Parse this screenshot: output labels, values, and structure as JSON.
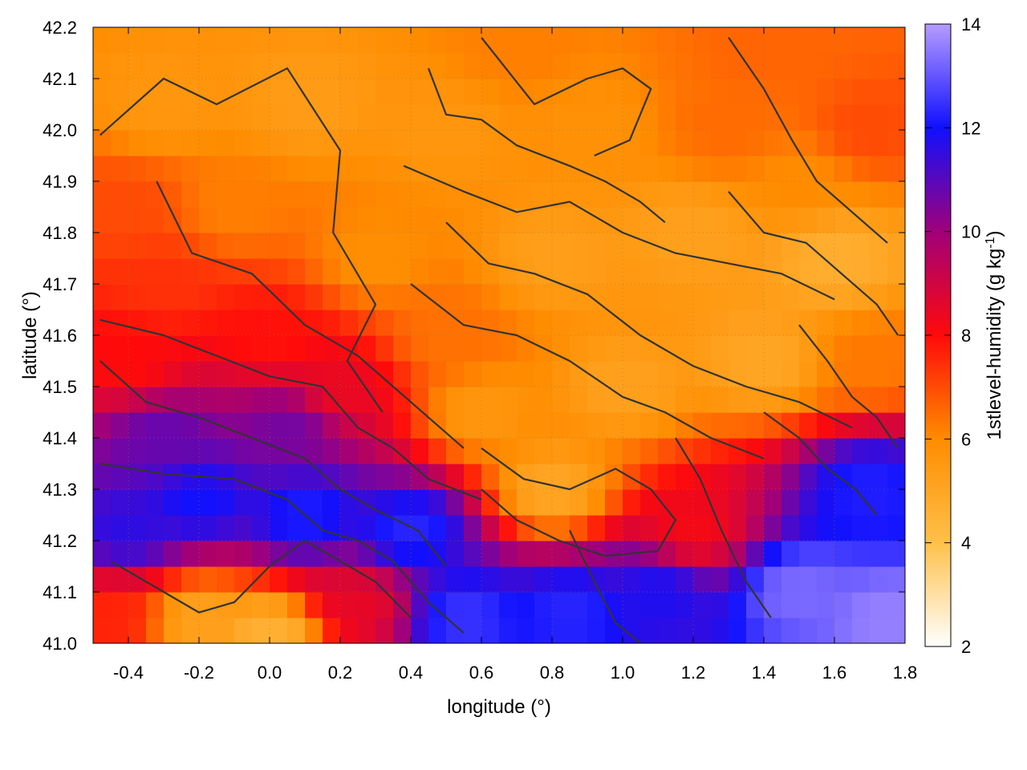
{
  "chart_data": {
    "type": "heatmap",
    "xlabel": "longitude (°)",
    "ylabel": "latitude (°)",
    "colorbar_label": "1stlevel-humidity (g kg",
    "colorbar_label_sup": "-1",
    "colorbar_label_close": ")",
    "xlim": [
      -0.5,
      1.8
    ],
    "ylim": [
      41.0,
      42.2
    ],
    "clim": [
      2,
      14
    ],
    "x_ticks": [
      -0.4,
      -0.2,
      0.0,
      0.2,
      0.4,
      0.6,
      0.8,
      1.0,
      1.2,
      1.4,
      1.6,
      1.8
    ],
    "x_tick_labels": [
      "-0.4",
      "-0.2",
      "0.0",
      "0.2",
      "0.4",
      "0.6",
      "0.8",
      "1.0",
      "1.2",
      "1.4",
      "1.6",
      "1.8"
    ],
    "y_ticks": [
      41.0,
      41.1,
      41.2,
      41.3,
      41.4,
      41.5,
      41.6,
      41.7,
      41.8,
      41.9,
      42.0,
      42.1,
      42.2
    ],
    "y_tick_labels": [
      "41.0",
      "41.1",
      "41.2",
      "41.3",
      "41.4",
      "41.5",
      "41.6",
      "41.7",
      "41.8",
      "41.9",
      "42.0",
      "42.1",
      "42.2"
    ],
    "colorbar_ticks": [
      2,
      4,
      6,
      8,
      10,
      12,
      14
    ],
    "colorbar_tick_labels": [
      "2",
      "4",
      "6",
      "8",
      "10",
      "12",
      "14"
    ],
    "colormap": [
      {
        "value": 2,
        "color": "#ffffff"
      },
      {
        "value": 4,
        "color": "#ffc04a"
      },
      {
        "value": 6,
        "color": "#ff8c00"
      },
      {
        "value": 8,
        "color": "#ff0a0a"
      },
      {
        "value": 10,
        "color": "#a0007a"
      },
      {
        "value": 12,
        "color": "#1010ff"
      },
      {
        "value": 14,
        "color": "#b69cff"
      }
    ],
    "grid": true,
    "contour_color": "#333333",
    "field_anchors": [
      {
        "lon": -0.45,
        "lat": 41.05,
        "value": 7.6
      },
      {
        "lon": -0.2,
        "lat": 41.05,
        "value": 5.2
      },
      {
        "lon": 0.0,
        "lat": 41.02,
        "value": 4.6
      },
      {
        "lon": 0.25,
        "lat": 41.08,
        "value": 8.5
      },
      {
        "lon": -0.4,
        "lat": 41.22,
        "value": 11.6
      },
      {
        "lon": -0.2,
        "lat": 41.28,
        "value": 12.0
      },
      {
        "lon": 0.1,
        "lat": 41.25,
        "value": 12.2
      },
      {
        "lon": 0.4,
        "lat": 41.22,
        "value": 12.3
      },
      {
        "lon": 0.55,
        "lat": 41.05,
        "value": 12.5
      },
      {
        "lon": 0.85,
        "lat": 41.06,
        "value": 12.3
      },
      {
        "lon": 1.1,
        "lat": 41.1,
        "value": 11.8
      },
      {
        "lon": 1.5,
        "lat": 41.1,
        "value": 13.3
      },
      {
        "lon": 1.75,
        "lat": 41.05,
        "value": 13.6
      },
      {
        "lon": 1.7,
        "lat": 41.3,
        "value": 12.2
      },
      {
        "lon": 1.2,
        "lat": 41.22,
        "value": 8.2
      },
      {
        "lon": -0.3,
        "lat": 41.4,
        "value": 10.8
      },
      {
        "lon": 0.05,
        "lat": 41.42,
        "value": 10.6
      },
      {
        "lon": 0.2,
        "lat": 41.5,
        "value": 8.4
      },
      {
        "lon": -0.4,
        "lat": 41.55,
        "value": 8.0
      },
      {
        "lon": -0.3,
        "lat": 41.7,
        "value": 7.4
      },
      {
        "lon": 0.0,
        "lat": 41.6,
        "value": 7.9
      },
      {
        "lon": 0.8,
        "lat": 41.3,
        "value": 5.0
      },
      {
        "lon": 0.6,
        "lat": 41.45,
        "value": 5.6
      },
      {
        "lon": 0.5,
        "lat": 41.6,
        "value": 6.4
      },
      {
        "lon": 1.0,
        "lat": 41.5,
        "value": 5.2
      },
      {
        "lon": 1.4,
        "lat": 41.55,
        "value": 5.0
      },
      {
        "lon": 1.7,
        "lat": 41.55,
        "value": 6.3
      },
      {
        "lon": 1.6,
        "lat": 41.75,
        "value": 4.7
      },
      {
        "lon": 1.2,
        "lat": 41.8,
        "value": 5.2
      },
      {
        "lon": 0.8,
        "lat": 41.75,
        "value": 5.3
      },
      {
        "lon": 0.3,
        "lat": 41.75,
        "value": 5.9
      },
      {
        "lon": -0.1,
        "lat": 41.85,
        "value": 6.2
      },
      {
        "lon": -0.4,
        "lat": 41.85,
        "value": 7.0
      },
      {
        "lon": -0.3,
        "lat": 42.05,
        "value": 5.6
      },
      {
        "lon": 0.1,
        "lat": 42.05,
        "value": 5.4
      },
      {
        "lon": 0.5,
        "lat": 42.0,
        "value": 5.6
      },
      {
        "lon": 0.9,
        "lat": 42.0,
        "value": 5.8
      },
      {
        "lon": 1.3,
        "lat": 42.0,
        "value": 6.5
      },
      {
        "lon": 1.7,
        "lat": 42.0,
        "value": 7.0
      },
      {
        "lon": 1.5,
        "lat": 41.9,
        "value": 6.0
      },
      {
        "lon": 0.7,
        "lat": 42.15,
        "value": 6.2
      },
      {
        "lon": 1.4,
        "lat": 42.15,
        "value": 6.6
      }
    ],
    "contours": [
      [
        [
          -0.48,
          41.99
        ],
        [
          -0.3,
          42.1
        ],
        [
          -0.15,
          42.05
        ],
        [
          0.05,
          42.12
        ],
        [
          0.2,
          41.96
        ],
        [
          0.18,
          41.8
        ],
        [
          0.3,
          41.66
        ],
        [
          0.22,
          41.55
        ],
        [
          0.32,
          41.45
        ]
      ],
      [
        [
          -0.32,
          41.9
        ],
        [
          -0.22,
          41.76
        ],
        [
          -0.05,
          41.72
        ],
        [
          0.1,
          41.62
        ],
        [
          0.25,
          41.56
        ],
        [
          0.35,
          41.5
        ],
        [
          0.45,
          41.44
        ],
        [
          0.55,
          41.38
        ]
      ],
      [
        [
          -0.48,
          41.63
        ],
        [
          -0.3,
          41.6
        ],
        [
          -0.15,
          41.56
        ],
        [
          0.0,
          41.52
        ],
        [
          0.15,
          41.5
        ],
        [
          0.25,
          41.42
        ],
        [
          0.35,
          41.38
        ],
        [
          0.45,
          41.32
        ],
        [
          0.6,
          41.28
        ]
      ],
      [
        [
          -0.48,
          41.55
        ],
        [
          -0.35,
          41.47
        ],
        [
          -0.2,
          41.44
        ],
        [
          -0.05,
          41.4
        ],
        [
          0.1,
          41.36
        ],
        [
          0.2,
          41.3
        ],
        [
          0.3,
          41.26
        ],
        [
          0.42,
          41.22
        ],
        [
          0.5,
          41.15
        ]
      ],
      [
        [
          -0.48,
          41.35
        ],
        [
          -0.3,
          41.33
        ],
        [
          -0.1,
          41.32
        ],
        [
          0.05,
          41.28
        ],
        [
          0.15,
          41.22
        ],
        [
          0.25,
          41.2
        ],
        [
          0.35,
          41.16
        ],
        [
          0.45,
          41.08
        ],
        [
          0.55,
          41.02
        ]
      ],
      [
        [
          -0.45,
          41.16
        ],
        [
          -0.3,
          41.1
        ],
        [
          -0.2,
          41.06
        ],
        [
          -0.1,
          41.08
        ],
        [
          0.0,
          41.15
        ],
        [
          0.1,
          41.2
        ],
        [
          0.2,
          41.16
        ],
        [
          0.3,
          41.12
        ],
        [
          0.4,
          41.05
        ]
      ],
      [
        [
          0.45,
          42.12
        ],
        [
          0.5,
          42.03
        ],
        [
          0.6,
          42.02
        ],
        [
          0.7,
          41.97
        ],
        [
          0.85,
          41.93
        ],
        [
          0.95,
          41.9
        ],
        [
          1.05,
          41.86
        ],
        [
          1.12,
          41.82
        ]
      ],
      [
        [
          0.6,
          42.18
        ],
        [
          0.75,
          42.05
        ],
        [
          0.9,
          42.1
        ],
        [
          1.0,
          42.12
        ],
        [
          1.08,
          42.08
        ],
        [
          1.02,
          41.98
        ],
        [
          0.92,
          41.95
        ]
      ],
      [
        [
          0.38,
          41.93
        ],
        [
          0.55,
          41.88
        ],
        [
          0.7,
          41.84
        ],
        [
          0.85,
          41.86
        ],
        [
          1.0,
          41.8
        ],
        [
          1.15,
          41.76
        ],
        [
          1.3,
          41.74
        ],
        [
          1.45,
          41.72
        ],
        [
          1.6,
          41.67
        ]
      ],
      [
        [
          0.5,
          41.82
        ],
        [
          0.62,
          41.74
        ],
        [
          0.75,
          41.72
        ],
        [
          0.9,
          41.68
        ],
        [
          1.05,
          41.6
        ],
        [
          1.2,
          41.54
        ],
        [
          1.35,
          41.5
        ],
        [
          1.5,
          41.47
        ],
        [
          1.65,
          41.42
        ]
      ],
      [
        [
          0.4,
          41.7
        ],
        [
          0.55,
          41.62
        ],
        [
          0.7,
          41.6
        ],
        [
          0.85,
          41.55
        ],
        [
          1.0,
          41.48
        ],
        [
          1.12,
          41.45
        ],
        [
          1.25,
          41.4
        ],
        [
          1.4,
          41.36
        ]
      ],
      [
        [
          0.6,
          41.38
        ],
        [
          0.72,
          41.32
        ],
        [
          0.85,
          41.3
        ],
        [
          0.98,
          41.34
        ],
        [
          1.08,
          41.3
        ],
        [
          1.15,
          41.24
        ],
        [
          1.1,
          41.18
        ],
        [
          0.95,
          41.17
        ],
        [
          0.82,
          41.2
        ],
        [
          0.7,
          41.24
        ],
        [
          0.6,
          41.3
        ]
      ],
      [
        [
          1.15,
          41.4
        ],
        [
          1.22,
          41.32
        ],
        [
          1.28,
          41.22
        ],
        [
          1.35,
          41.12
        ],
        [
          1.42,
          41.05
        ]
      ],
      [
        [
          0.85,
          41.22
        ],
        [
          0.92,
          41.12
        ],
        [
          0.98,
          41.04
        ],
        [
          1.05,
          41.0
        ]
      ],
      [
        [
          1.3,
          42.18
        ],
        [
          1.4,
          42.08
        ],
        [
          1.48,
          41.98
        ],
        [
          1.55,
          41.9
        ],
        [
          1.65,
          41.84
        ],
        [
          1.75,
          41.78
        ]
      ],
      [
        [
          1.3,
          41.88
        ],
        [
          1.4,
          41.8
        ],
        [
          1.52,
          41.78
        ],
        [
          1.62,
          41.72
        ],
        [
          1.72,
          41.66
        ],
        [
          1.78,
          41.6
        ]
      ],
      [
        [
          1.5,
          41.62
        ],
        [
          1.58,
          41.55
        ],
        [
          1.65,
          41.48
        ],
        [
          1.72,
          41.44
        ],
        [
          1.78,
          41.38
        ]
      ],
      [
        [
          1.4,
          41.45
        ],
        [
          1.5,
          41.4
        ],
        [
          1.58,
          41.34
        ],
        [
          1.66,
          41.3
        ],
        [
          1.72,
          41.25
        ]
      ]
    ]
  }
}
